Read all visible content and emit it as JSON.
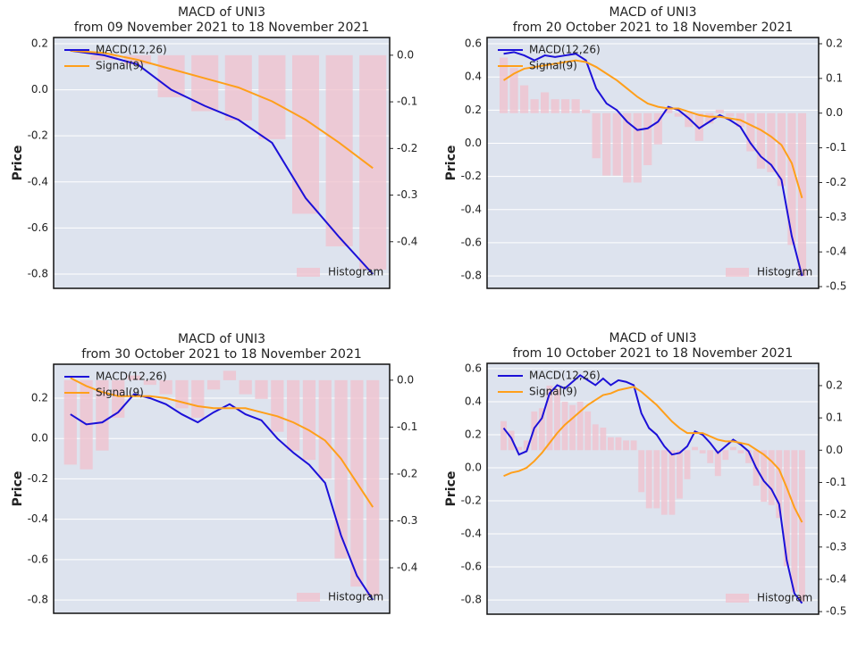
{
  "chart_data": [
    {
      "type": "line",
      "title": "MACD of UNI3",
      "subtitle": "from 09 November 2021 to 18 November 2021",
      "ylabel": "Price",
      "categories": [
        null,
        null,
        null,
        null,
        null,
        null,
        null,
        null,
        null,
        null
      ],
      "series": [
        {
          "name": "MACD(12,26)",
          "color": "#1c10d8",
          "values": [
            0.17,
            0.15,
            0.11,
            0.0,
            -0.07,
            -0.13,
            -0.23,
            -0.47,
            -0.64,
            -0.8
          ]
        },
        {
          "name": "Signal(9)",
          "color": "#ff9f1a",
          "values": [
            0.17,
            0.16,
            0.13,
            0.09,
            0.05,
            0.01,
            -0.05,
            -0.13,
            -0.23,
            -0.34
          ]
        },
        {
          "name": "Histogram",
          "type": "bar",
          "axis": "y2",
          "color": "#f0c0cc",
          "values": [
            0.0,
            -0.01,
            -0.02,
            -0.09,
            -0.12,
            -0.14,
            -0.18,
            -0.34,
            -0.41,
            -0.46
          ]
        }
      ],
      "ylim": [
        -0.862,
        0.227
      ],
      "yticks": [
        0.2,
        {
          "value": 0,
          "label": "0.0"
        },
        -0.2,
        -0.4,
        -0.6,
        -0.8
      ],
      "y2lim": [
        -0.5,
        0.038
      ],
      "y2ticks": [
        {
          "value": 0,
          "label": "0.0"
        },
        -0.1,
        -0.2,
        -0.3,
        -0.4
      ],
      "grid": true,
      "legend": "upper left",
      "histogram_legend": "lower right"
    },
    {
      "type": "line",
      "title": "MACD of UNI3",
      "subtitle": "from 20 October 2021 to 18 November 2021",
      "ylabel": "Price",
      "categories": [
        null,
        null,
        null,
        null,
        null,
        null,
        null,
        null,
        null,
        null,
        null,
        null,
        null,
        null,
        null,
        null,
        null,
        null,
        null,
        null,
        null,
        null,
        null,
        null,
        null,
        null,
        null,
        null,
        null,
        null
      ],
      "series": [
        {
          "name": "MACD(12,26)",
          "color": "#1c10d8",
          "values": [
            0.54,
            0.55,
            0.53,
            0.5,
            0.53,
            0.52,
            0.53,
            0.54,
            0.5,
            0.33,
            0.24,
            0.2,
            0.13,
            0.08,
            0.09,
            0.13,
            0.22,
            0.2,
            0.15,
            0.09,
            0.13,
            0.17,
            0.14,
            0.1,
            0.0,
            -0.08,
            -0.13,
            -0.22,
            -0.56,
            -0.8
          ]
        },
        {
          "name": "Signal(9)",
          "color": "#ff9f1a",
          "values": [
            0.38,
            0.42,
            0.45,
            0.46,
            0.47,
            0.48,
            0.49,
            0.5,
            0.49,
            0.46,
            0.42,
            0.38,
            0.33,
            0.28,
            0.24,
            0.22,
            0.21,
            0.21,
            0.19,
            0.17,
            0.16,
            0.16,
            0.15,
            0.14,
            0.11,
            0.08,
            0.04,
            -0.01,
            -0.12,
            -0.33
          ]
        },
        {
          "name": "Histogram",
          "type": "bar",
          "axis": "y2",
          "color": "#f0c0cc",
          "values": [
            0.16,
            0.13,
            0.08,
            0.04,
            0.06,
            0.04,
            0.04,
            0.04,
            0.01,
            -0.13,
            -0.18,
            -0.18,
            -0.2,
            -0.2,
            -0.15,
            -0.09,
            0.01,
            -0.01,
            -0.04,
            -0.08,
            -0.03,
            0.01,
            -0.01,
            -0.04,
            -0.11,
            -0.16,
            -0.17,
            -0.21,
            -0.38,
            -0.47
          ]
        }
      ],
      "ylim": [
        -0.875,
        0.638
      ],
      "yticks": [
        0.6,
        0.4,
        0.2,
        {
          "value": 0,
          "label": "0.0"
        },
        -0.2,
        -0.4,
        -0.6,
        -0.8
      ],
      "y2lim": [
        -0.505,
        0.218
      ],
      "y2ticks": [
        0.2,
        0.1,
        {
          "value": 0,
          "label": "0.0"
        },
        -0.1,
        -0.2,
        -0.3,
        -0.4,
        -0.5
      ],
      "grid": true,
      "legend": "upper left",
      "histogram_legend": "lower right"
    },
    {
      "type": "line",
      "title": "MACD of UNI3",
      "subtitle": "from 30 October 2021 to 18 November 2021",
      "ylabel": "Price",
      "categories": [
        null,
        null,
        null,
        null,
        null,
        null,
        null,
        null,
        null,
        null,
        null,
        null,
        null,
        null,
        null,
        null,
        null,
        null,
        null,
        null
      ],
      "series": [
        {
          "name": "MACD(12,26)",
          "color": "#1c10d8",
          "values": [
            0.12,
            0.07,
            0.08,
            0.13,
            0.22,
            0.2,
            0.17,
            0.12,
            0.08,
            0.13,
            0.17,
            0.12,
            0.09,
            0.0,
            -0.07,
            -0.13,
            -0.22,
            -0.48,
            -0.68,
            -0.8
          ]
        },
        {
          "name": "Signal(9)",
          "color": "#ff9f1a",
          "values": [
            0.3,
            0.26,
            0.23,
            0.21,
            0.21,
            0.21,
            0.2,
            0.18,
            0.16,
            0.15,
            0.15,
            0.15,
            0.13,
            0.11,
            0.08,
            0.04,
            -0.01,
            -0.1,
            -0.22,
            -0.34
          ]
        },
        {
          "name": "Histogram",
          "type": "bar",
          "axis": "y2",
          "color": "#f0c0cc",
          "values": [
            -0.18,
            -0.19,
            -0.15,
            -0.08,
            0.01,
            -0.01,
            -0.03,
            -0.06,
            -0.08,
            -0.02,
            0.02,
            -0.03,
            -0.04,
            -0.11,
            -0.15,
            -0.17,
            -0.21,
            -0.38,
            -0.44,
            -0.46
          ]
        }
      ],
      "ylim": [
        -0.866,
        0.368
      ],
      "yticks": [
        0.2,
        {
          "value": 0,
          "label": "0.0"
        },
        -0.2,
        -0.4,
        -0.6,
        -0.8
      ],
      "y2lim": [
        -0.497,
        0.034
      ],
      "y2ticks": [
        {
          "value": 0,
          "label": "0.0"
        },
        -0.1,
        -0.2,
        -0.3,
        -0.4
      ],
      "grid": true,
      "legend": "upper left",
      "histogram_legend": "lower right"
    },
    {
      "type": "line",
      "title": "MACD of UNI3",
      "subtitle": "from 10 October 2021 to 18 November 2021",
      "ylabel": "Price",
      "categories": [
        null,
        null,
        null,
        null,
        null,
        null,
        null,
        null,
        null,
        null,
        null,
        null,
        null,
        null,
        null,
        null,
        null,
        null,
        null,
        null,
        null,
        null,
        null,
        null,
        null,
        null,
        null,
        null,
        null,
        null,
        null,
        null,
        null,
        null,
        null,
        null,
        null,
        null,
        null,
        null
      ],
      "series": [
        {
          "name": "MACD(12,26)",
          "color": "#1c10d8",
          "values": [
            0.24,
            0.18,
            0.08,
            0.1,
            0.24,
            0.3,
            0.45,
            0.5,
            0.48,
            0.52,
            0.56,
            0.53,
            0.5,
            0.54,
            0.5,
            0.53,
            0.52,
            0.5,
            0.33,
            0.24,
            0.2,
            0.13,
            0.08,
            0.09,
            0.13,
            0.22,
            0.2,
            0.15,
            0.09,
            0.13,
            0.17,
            0.14,
            0.1,
            0.0,
            -0.08,
            -0.13,
            -0.22,
            -0.56,
            -0.76,
            -0.82
          ]
        },
        {
          "name": "Signal(9)",
          "color": "#ff9f1a",
          "values": [
            -0.05,
            -0.03,
            -0.02,
            0.0,
            0.04,
            0.09,
            0.15,
            0.21,
            0.26,
            0.3,
            0.34,
            0.38,
            0.41,
            0.44,
            0.45,
            0.47,
            0.48,
            0.49,
            0.46,
            0.42,
            0.38,
            0.33,
            0.28,
            0.24,
            0.21,
            0.21,
            0.21,
            0.19,
            0.17,
            0.16,
            0.16,
            0.15,
            0.14,
            0.11,
            0.08,
            0.04,
            -0.01,
            -0.12,
            -0.24,
            -0.33
          ]
        },
        {
          "name": "Histogram",
          "type": "bar",
          "axis": "y2",
          "color": "#f0c0cc",
          "values": [
            0.09,
            0.06,
            0.01,
            0.03,
            0.12,
            0.13,
            0.2,
            0.19,
            0.15,
            0.14,
            0.15,
            0.12,
            0.08,
            0.07,
            0.04,
            0.04,
            0.03,
            0.03,
            -0.13,
            -0.18,
            -0.18,
            -0.2,
            -0.2,
            -0.15,
            -0.09,
            0.01,
            -0.01,
            -0.04,
            -0.08,
            -0.03,
            0.01,
            -0.01,
            -0.04,
            -0.11,
            -0.16,
            -0.17,
            -0.21,
            -0.36,
            -0.44,
            -0.47
          ]
        }
      ],
      "ylim": [
        -0.886,
        0.632
      ],
      "yticks": [
        0.6,
        0.4,
        0.2,
        {
          "value": 0,
          "label": "0.0"
        },
        -0.2,
        -0.4,
        -0.6,
        -0.8
      ],
      "y2lim": [
        -0.508,
        0.269
      ],
      "y2ticks": [
        0.2,
        0.1,
        {
          "value": 0,
          "label": "0.0"
        },
        -0.1,
        -0.2,
        -0.3,
        -0.4,
        -0.5
      ],
      "grid": true,
      "legend": "upper left",
      "histogram_legend": "lower right"
    }
  ]
}
